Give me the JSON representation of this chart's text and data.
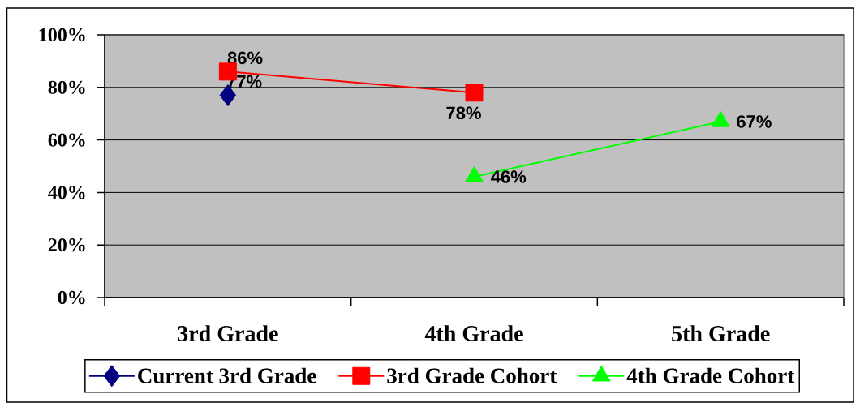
{
  "chart_data": {
    "type": "line",
    "categories": [
      "3rd Grade",
      "4th Grade",
      "5th Grade"
    ],
    "series": [
      {
        "name": "Current 3rd Grade",
        "color": "#000080",
        "marker": "diamond",
        "values": [
          77,
          null,
          null
        ],
        "value_labels": [
          "77%",
          null,
          null
        ]
      },
      {
        "name": "3rd Grade Cohort",
        "color": "#ff0000",
        "marker": "square",
        "values": [
          86,
          78,
          null
        ],
        "value_labels": [
          "86%",
          "78%",
          null
        ]
      },
      {
        "name": "4th Grade Cohort",
        "color": "#00ff00",
        "marker": "triangle",
        "values": [
          null,
          46,
          67
        ],
        "value_labels": [
          null,
          "46%",
          "67%"
        ]
      }
    ],
    "ylim": [
      0,
      100
    ],
    "yticks": [
      {
        "value": 0,
        "label": "0%"
      },
      {
        "value": 20,
        "label": "20%"
      },
      {
        "value": 40,
        "label": "40%"
      },
      {
        "value": 60,
        "label": "60%"
      },
      {
        "value": 80,
        "label": "80%"
      },
      {
        "value": 100,
        "label": "100%"
      }
    ],
    "grid": "y",
    "legend": "bottom"
  }
}
